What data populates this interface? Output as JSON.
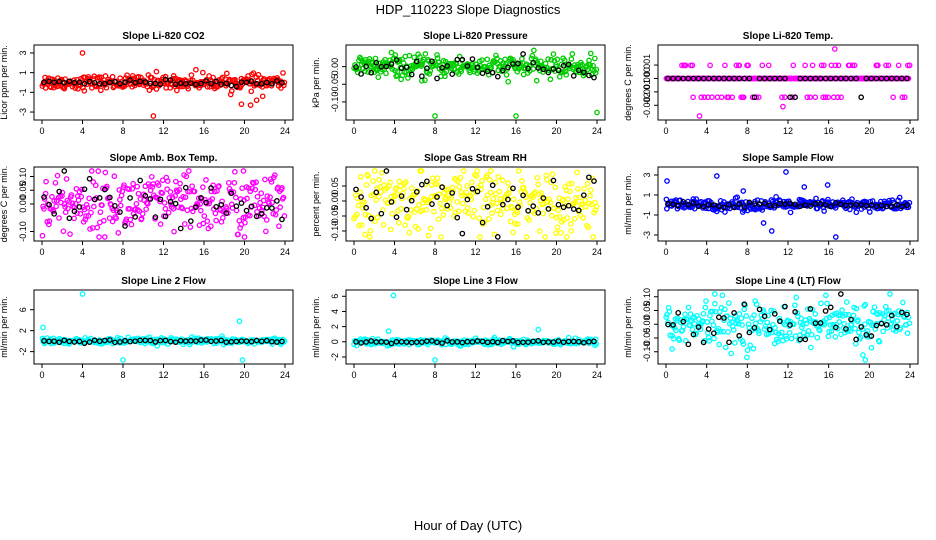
{
  "figure": {
    "title": "HDP_110223  Slope Diagnostics",
    "xlabel": "Hour of Day (UTC)"
  },
  "chart_data": [
    {
      "type": "scatter",
      "title": "Slope Li-820 CO2",
      "ylabel": "Licor ppm per min.",
      "color": "#ff0000",
      "xlim": [
        0,
        24
      ],
      "xticks": [
        0,
        4,
        8,
        12,
        16,
        20,
        24
      ],
      "ylim": [
        -3.4,
        3.4
      ],
      "yticks": [
        -3,
        -1,
        1,
        3
      ],
      "spread": 0.35,
      "outliers": [
        [
          4.0,
          3.0
        ],
        [
          11.0,
          -3.4
        ],
        [
          11.3,
          1.1
        ],
        [
          15.2,
          1.3
        ],
        [
          19.7,
          -2.2
        ],
        [
          20.6,
          -2.3
        ],
        [
          21.2,
          -1.8
        ],
        [
          21.8,
          -1.4
        ],
        [
          0.3,
          0.5
        ],
        [
          16.9,
          0.5
        ]
      ]
    },
    {
      "type": "scatter",
      "title": "Slope Li-820 Pressure",
      "ylabel": "kPa per min.",
      "color": "#00cc00",
      "xlim": [
        0,
        24
      ],
      "xticks": [
        0,
        4,
        8,
        12,
        16,
        20,
        24
      ],
      "ylim": [
        -0.14,
        0.05
      ],
      "yticks": [
        -0.1,
        -0.05,
        0.0
      ],
      "spread": 0.015,
      "outliers": [
        [
          2.4,
          -0.03
        ],
        [
          3.7,
          0.04
        ],
        [
          4.3,
          -0.025
        ],
        [
          6.7,
          -0.04
        ],
        [
          8.0,
          -0.14
        ],
        [
          16.0,
          -0.14
        ],
        [
          24.0,
          -0.13
        ]
      ]
    },
    {
      "type": "scatter",
      "title": "Slope Li-820 Temp.",
      "ylabel": "degrees C per min.",
      "color": "#ff00ff",
      "xlim": [
        0,
        24
      ],
      "xticks": [
        0,
        4,
        8,
        12,
        16,
        20,
        24
      ],
      "ylim": [
        -0.0028,
        0.0022
      ],
      "yticks": [
        -0.002,
        -0.001,
        0.0,
        0.001
      ],
      "quantized": 0.0007,
      "outliers": [
        [
          3.3,
          -0.0028
        ],
        [
          16.6,
          0.0022
        ],
        [
          11.5,
          -0.0021
        ]
      ]
    },
    {
      "type": "scatter",
      "title": "Slope Amb. Box Temp.",
      "ylabel": "degrees C per min.",
      "color": "#ff00ff",
      "xlim": [
        0,
        24
      ],
      "xticks": [
        0,
        4,
        8,
        12,
        16,
        20,
        24
      ],
      "ylim": [
        -0.12,
        0.12
      ],
      "yticks": [
        -0.1,
        0.0,
        0.05,
        0.1
      ],
      "spread": 0.055,
      "outliers": [
        [
          20.0,
          -0.12
        ],
        [
          19.9,
          0.12
        ]
      ]
    },
    {
      "type": "scatter",
      "title": "Slope Gas Stream RH",
      "ylabel": "percent per min.",
      "color": "#ffff00",
      "xlim": [
        0,
        24
      ],
      "xticks": [
        0,
        4,
        8,
        12,
        16,
        20,
        24
      ],
      "ylim": [
        -0.12,
        0.1
      ],
      "yticks": [
        -0.1,
        -0.05,
        0.0,
        0.05
      ],
      "spread": 0.05,
      "outliers": [
        [
          13.5,
          0.1
        ],
        [
          21.0,
          -0.12
        ]
      ]
    },
    {
      "type": "scatter",
      "title": "Slope Sample Flow",
      "ylabel": "ml/min per min.",
      "color": "#0000ff",
      "xlim": [
        0,
        24
      ],
      "xticks": [
        0,
        4,
        8,
        12,
        16,
        20,
        24
      ],
      "ylim": [
        -3.2,
        3.4
      ],
      "yticks": [
        -3,
        -1,
        1,
        3
      ],
      "spread": 0.3,
      "outliers": [
        [
          0.1,
          2.4
        ],
        [
          5.0,
          2.9
        ],
        [
          11.8,
          3.3
        ],
        [
          13.6,
          1.8
        ],
        [
          16.7,
          -3.2
        ],
        [
          10.4,
          -2.6
        ],
        [
          9.6,
          -1.8
        ],
        [
          15.9,
          2.0
        ],
        [
          7.6,
          1.4
        ]
      ]
    },
    {
      "type": "scatter",
      "title": "Slope Line 2 Flow",
      "ylabel": "ml/min per min.",
      "color": "#00ffff",
      "xlim": [
        0,
        24
      ],
      "xticks": [
        0,
        4,
        8,
        12,
        16,
        20,
        24
      ],
      "ylim": [
        -3.6,
        9.0
      ],
      "yticks": [
        -2,
        2,
        6
      ],
      "spread": 0.3,
      "outliers": [
        [
          0.1,
          2.6
        ],
        [
          4.0,
          9.0
        ],
        [
          8.0,
          -3.6
        ],
        [
          19.5,
          3.8
        ],
        [
          19.8,
          -3.6
        ]
      ]
    },
    {
      "type": "scatter",
      "title": "Slope Line 3 Flow",
      "ylabel": "ml/min per min.",
      "color": "#00ffff",
      "xlim": [
        0,
        24
      ],
      "xticks": [
        0,
        4,
        8,
        12,
        16,
        20,
        24
      ],
      "ylim": [
        -2.4,
        6.3
      ],
      "yticks": [
        -2,
        0,
        2,
        4,
        6
      ],
      "spread": 0.2,
      "outliers": [
        [
          3.9,
          6.1
        ],
        [
          8.0,
          -2.4
        ],
        [
          18.2,
          1.6
        ],
        [
          3.4,
          1.4
        ]
      ]
    },
    {
      "type": "scatter",
      "title": "Slope Line 4 (LT) Flow",
      "ylabel": "ml/min per min.",
      "color": "#00ffff",
      "xlim": [
        0,
        24
      ],
      "xticks": [
        0,
        4,
        8,
        12,
        16,
        20,
        24
      ],
      "ylim": [
        -0.13,
        0.11
      ],
      "yticks": [
        -0.1,
        -0.05,
        0.0,
        0.05,
        0.1
      ],
      "spread": 0.04,
      "outliers": [
        [
          0.6,
          -0.09
        ],
        [
          4.8,
          0.11
        ],
        [
          19.6,
          -0.13
        ]
      ]
    }
  ]
}
